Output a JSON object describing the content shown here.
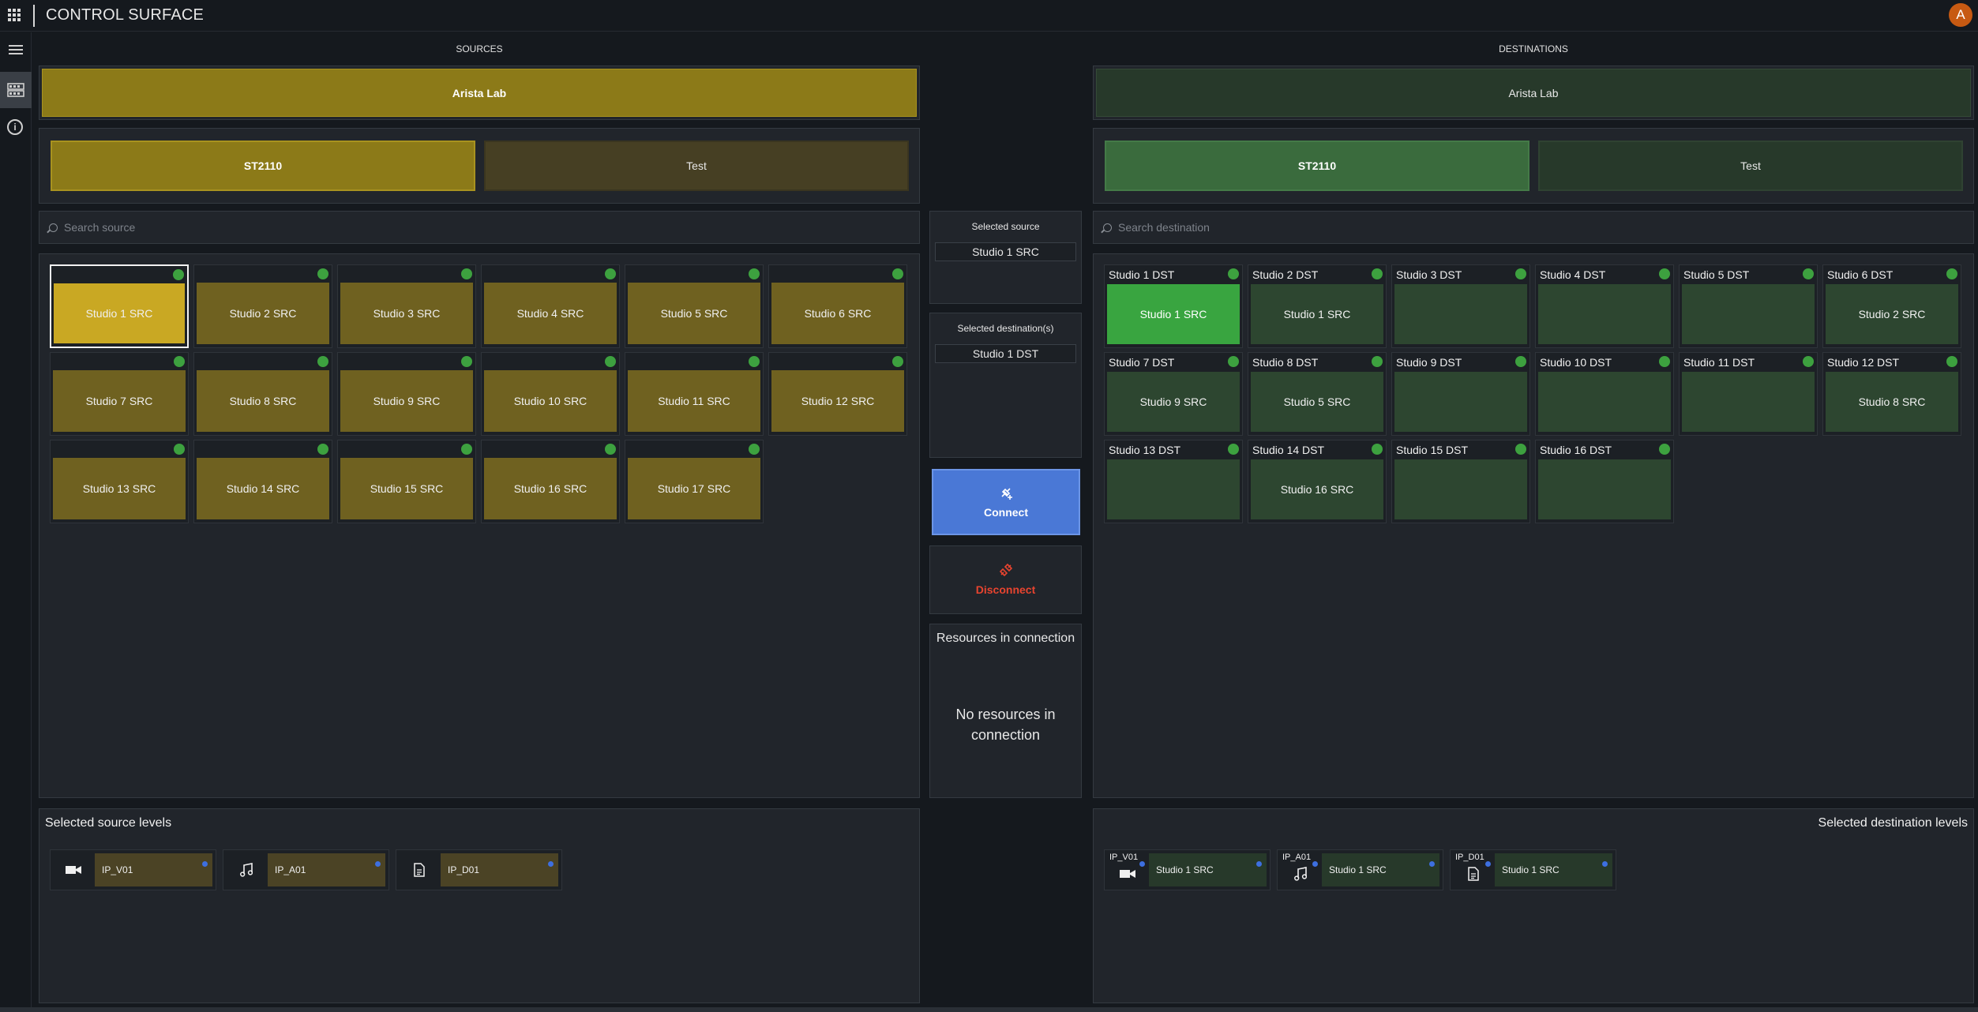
{
  "app": {
    "title": "CONTROL SURFACE",
    "avatar_initial": "A"
  },
  "sidebar": {
    "items": [
      {
        "icon": "menu-icon"
      },
      {
        "icon": "router-icon",
        "active": true
      },
      {
        "icon": "info-icon"
      }
    ]
  },
  "sources": {
    "heading": "SOURCES",
    "location": "Arista Lab",
    "groups": [
      {
        "label": "ST2110",
        "active": true
      },
      {
        "label": "Test",
        "active": false
      }
    ],
    "search_placeholder": "Search source",
    "tiles": [
      {
        "label": "Studio 1 SRC",
        "selected": true
      },
      {
        "label": "Studio 2 SRC"
      },
      {
        "label": "Studio 3 SRC"
      },
      {
        "label": "Studio 4 SRC"
      },
      {
        "label": "Studio 5 SRC"
      },
      {
        "label": "Studio 6 SRC"
      },
      {
        "label": "Studio 7 SRC"
      },
      {
        "label": "Studio 8 SRC"
      },
      {
        "label": "Studio 9 SRC"
      },
      {
        "label": "Studio 10 SRC"
      },
      {
        "label": "Studio 11 SRC"
      },
      {
        "label": "Studio 12 SRC"
      },
      {
        "label": "Studio 13 SRC"
      },
      {
        "label": "Studio 14 SRC"
      },
      {
        "label": "Studio 15 SRC"
      },
      {
        "label": "Studio 16 SRC"
      },
      {
        "label": "Studio 17 SRC"
      }
    ],
    "levels_title": "Selected source levels",
    "levels": [
      {
        "icon": "video-camera-icon",
        "name": "IP_V01"
      },
      {
        "icon": "music-note-icon",
        "name": "IP_A01"
      },
      {
        "icon": "document-icon",
        "name": "IP_D01"
      }
    ]
  },
  "center": {
    "selected_source_label": "Selected source",
    "selected_source": "Studio 1 SRC",
    "selected_destinations_label": "Selected destination(s)",
    "selected_destinations": [
      "Studio 1 DST"
    ],
    "connect_label": "Connect",
    "disconnect_label": "Disconnect",
    "resources_title": "Resources in connection",
    "resources_empty": "No resources in connection"
  },
  "destinations": {
    "heading": "DESTINATIONS",
    "location": "Arista Lab",
    "groups": [
      {
        "label": "ST2110",
        "active": true
      },
      {
        "label": "Test",
        "active": false
      }
    ],
    "search_placeholder": "Search destination",
    "tiles": [
      {
        "name": "Studio 1 DST",
        "routed": "Studio 1 SRC",
        "live": true
      },
      {
        "name": "Studio 2 DST",
        "routed": "Studio 1 SRC"
      },
      {
        "name": "Studio 3 DST",
        "routed": ""
      },
      {
        "name": "Studio 4 DST",
        "routed": ""
      },
      {
        "name": "Studio 5 DST",
        "routed": ""
      },
      {
        "name": "Studio 6 DST",
        "routed": "Studio 2 SRC"
      },
      {
        "name": "Studio 7 DST",
        "routed": "Studio 9 SRC"
      },
      {
        "name": "Studio 8 DST",
        "routed": "Studio 5 SRC"
      },
      {
        "name": "Studio 9 DST",
        "routed": ""
      },
      {
        "name": "Studio 10 DST",
        "routed": ""
      },
      {
        "name": "Studio 11 DST",
        "routed": ""
      },
      {
        "name": "Studio 12 DST",
        "routed": "Studio 8 SRC"
      },
      {
        "name": "Studio 13 DST",
        "routed": ""
      },
      {
        "name": "Studio 14 DST",
        "routed": "Studio 16 SRC"
      },
      {
        "name": "Studio 15 DST",
        "routed": ""
      },
      {
        "name": "Studio 16 DST",
        "routed": ""
      }
    ],
    "levels_title": "Selected destination levels",
    "levels": [
      {
        "tag": "IP_V01",
        "icon": "video-camera-icon",
        "routed": "Studio 1 SRC"
      },
      {
        "tag": "IP_A01",
        "icon": "music-note-icon",
        "routed": "Studio 1 SRC"
      },
      {
        "tag": "IP_D01",
        "icon": "document-icon",
        "routed": "Studio 1 SRC"
      }
    ]
  },
  "colors": {
    "source_accent": "#8c7a18",
    "source_selected": "#c9a823",
    "destination_live": "#39a540",
    "status_online": "#3da13f",
    "connect": "#4a78d6",
    "disconnect": "#e8442f",
    "avatar": "#c75a12"
  }
}
